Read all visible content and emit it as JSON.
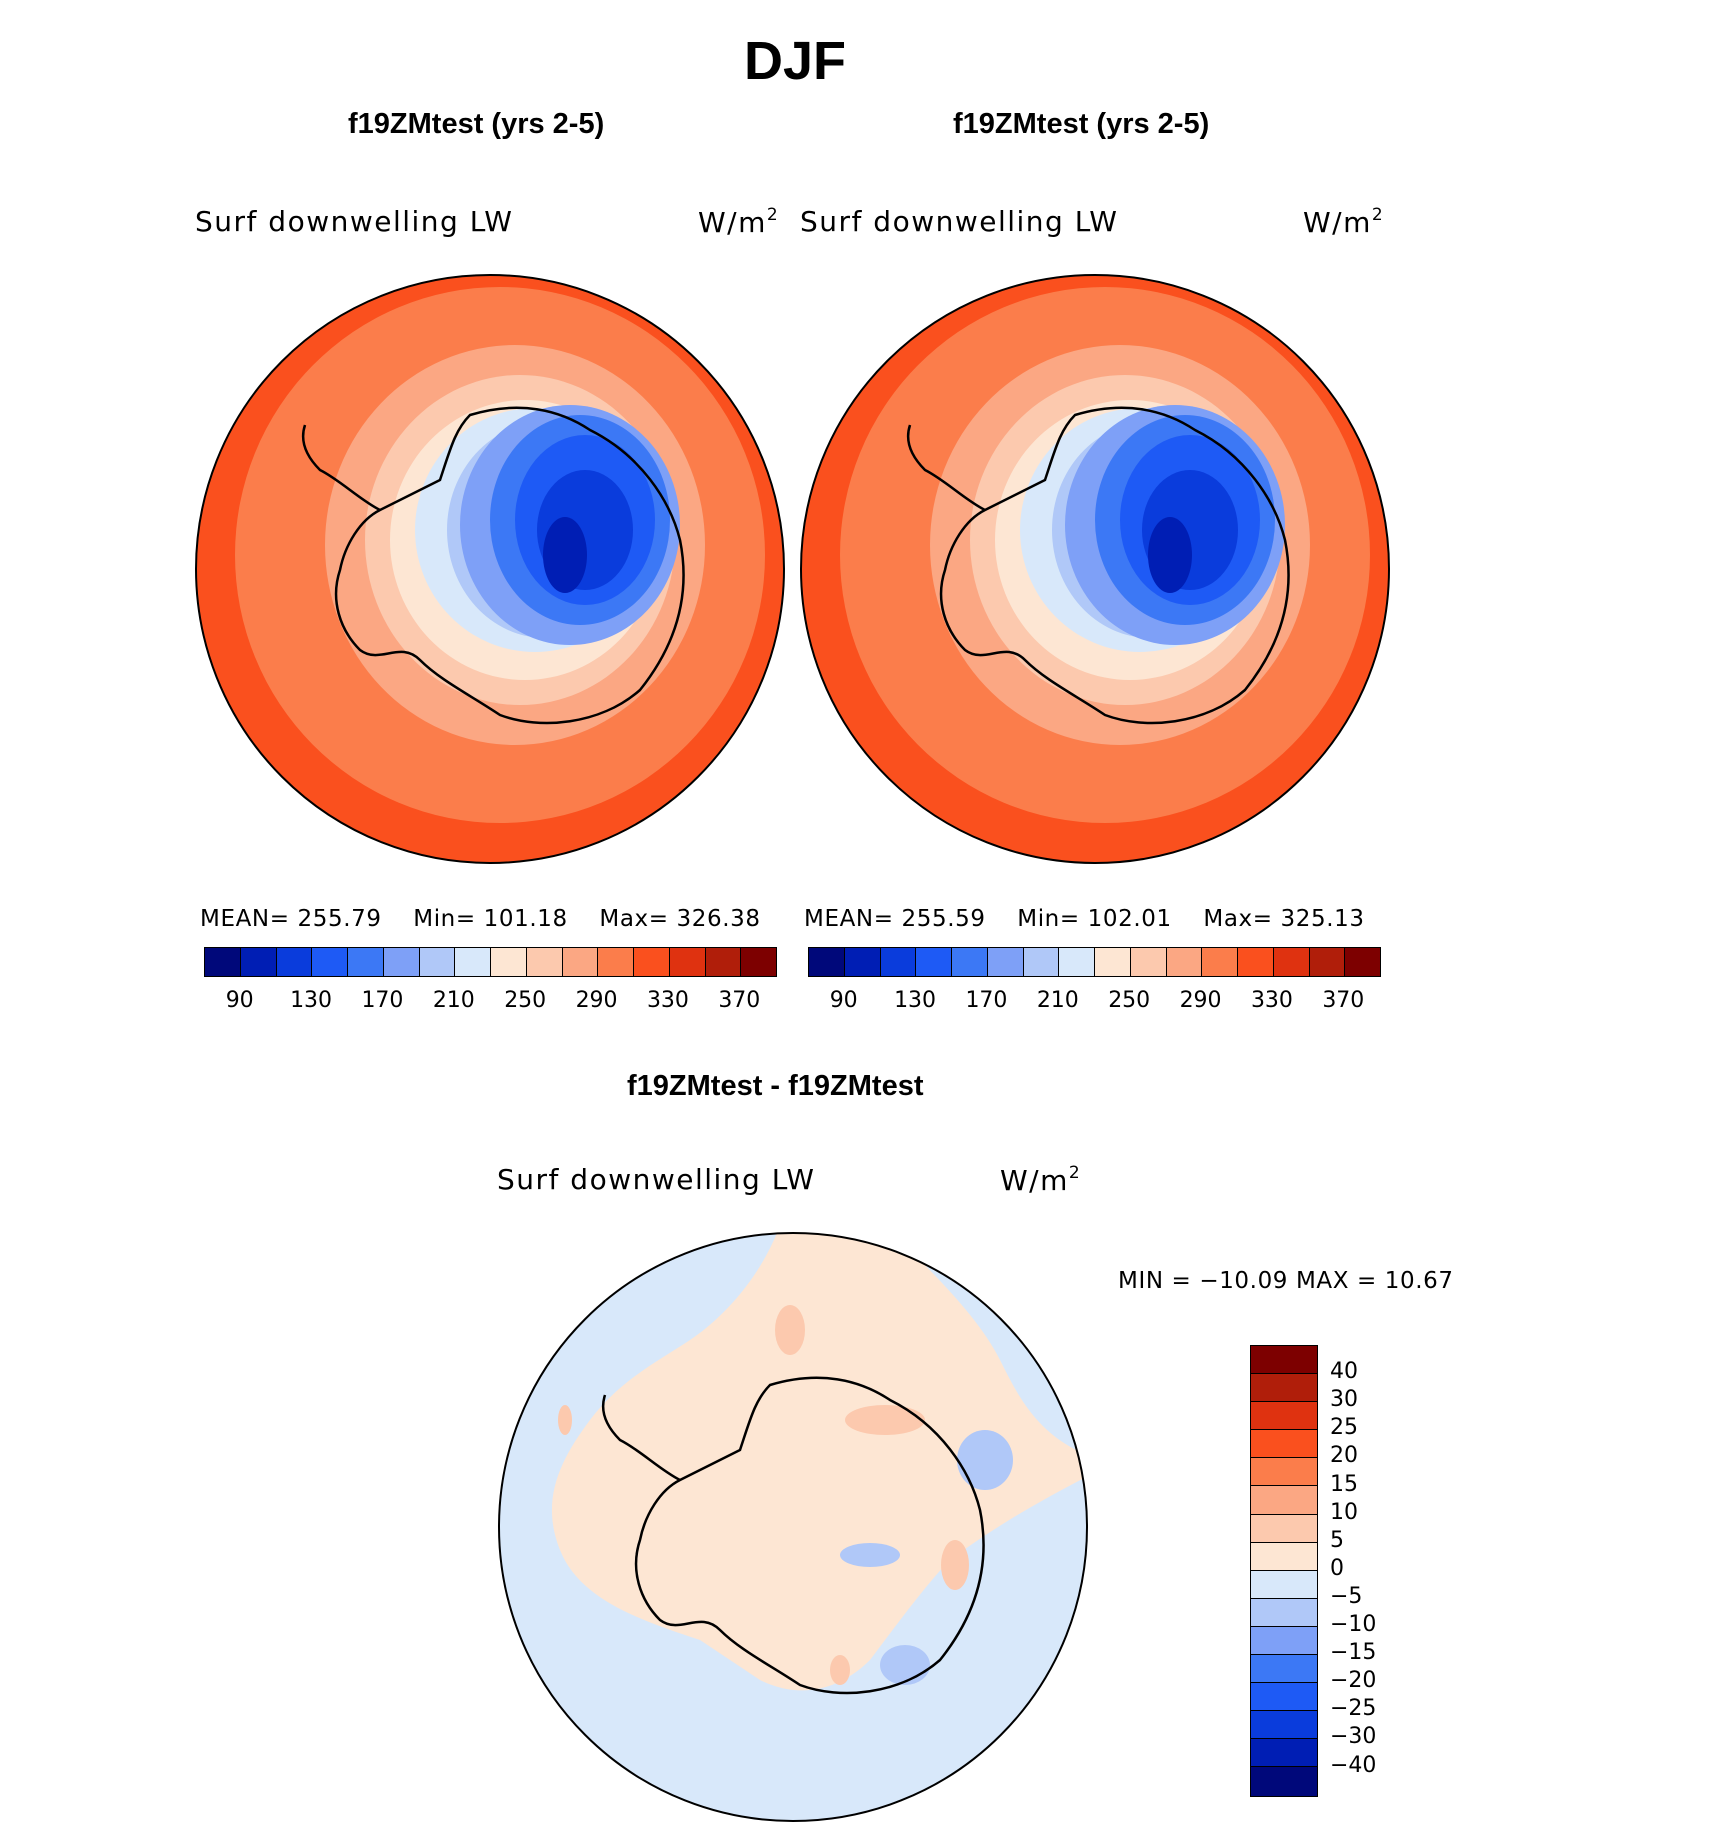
{
  "title": "DJF",
  "panels": [
    {
      "title": "f19ZMtest (yrs 2-5)",
      "field_label": "Surf downwelling LW",
      "units_base": "W/m",
      "units_exp": "2",
      "stats": {
        "mean_label": "MEAN=",
        "mean": "255.79",
        "min_label": "Min=",
        "min": "101.18",
        "max_label": "Max=",
        "max": "326.38"
      }
    },
    {
      "title": "f19ZMtest (yrs 2-5)",
      "field_label": "Surf downwelling LW",
      "units_base": "W/m",
      "units_exp": "2",
      "stats": {
        "mean_label": "MEAN=",
        "mean": "255.59",
        "min_label": "Min=",
        "min": "102.01",
        "max_label": "Max=",
        "max": "325.13"
      }
    }
  ],
  "diff_panel": {
    "title": "f19ZMtest - f19ZMtest",
    "field_label": "Surf downwelling LW",
    "units_base": "W/m",
    "units_exp": "2",
    "minmax": "MIN = −10.09 MAX =   10.67"
  },
  "abs_colorbar": {
    "colors": [
      "#00087a",
      "#001eb4",
      "#0a3cdc",
      "#1e5af5",
      "#3c78f5",
      "#7ea0f7",
      "#b0c8f8",
      "#d8e8fa",
      "#fde6d3",
      "#fcc9ae",
      "#fba783",
      "#fb7d4b",
      "#fa501e",
      "#df3210",
      "#b01e0a",
      "#7d0000"
    ],
    "labels": [
      "90",
      "130",
      "170",
      "210",
      "250",
      "290",
      "330",
      "370"
    ]
  },
  "diff_colorbar": {
    "colors": [
      "#7d0000",
      "#b01e0a",
      "#df3210",
      "#fa501e",
      "#fb7d4b",
      "#fba783",
      "#fcc9ae",
      "#fde6d3",
      "#d8e8fa",
      "#b0c8f8",
      "#7ea0f7",
      "#3c78f5",
      "#1e5af5",
      "#0a3cdc",
      "#001eb4",
      "#00087a"
    ],
    "labels": [
      "40",
      "30",
      "25",
      "20",
      "15",
      "10",
      "5",
      "0",
      "−5",
      "−10",
      "−15",
      "−20",
      "−25",
      "−30",
      "−40"
    ]
  }
}
